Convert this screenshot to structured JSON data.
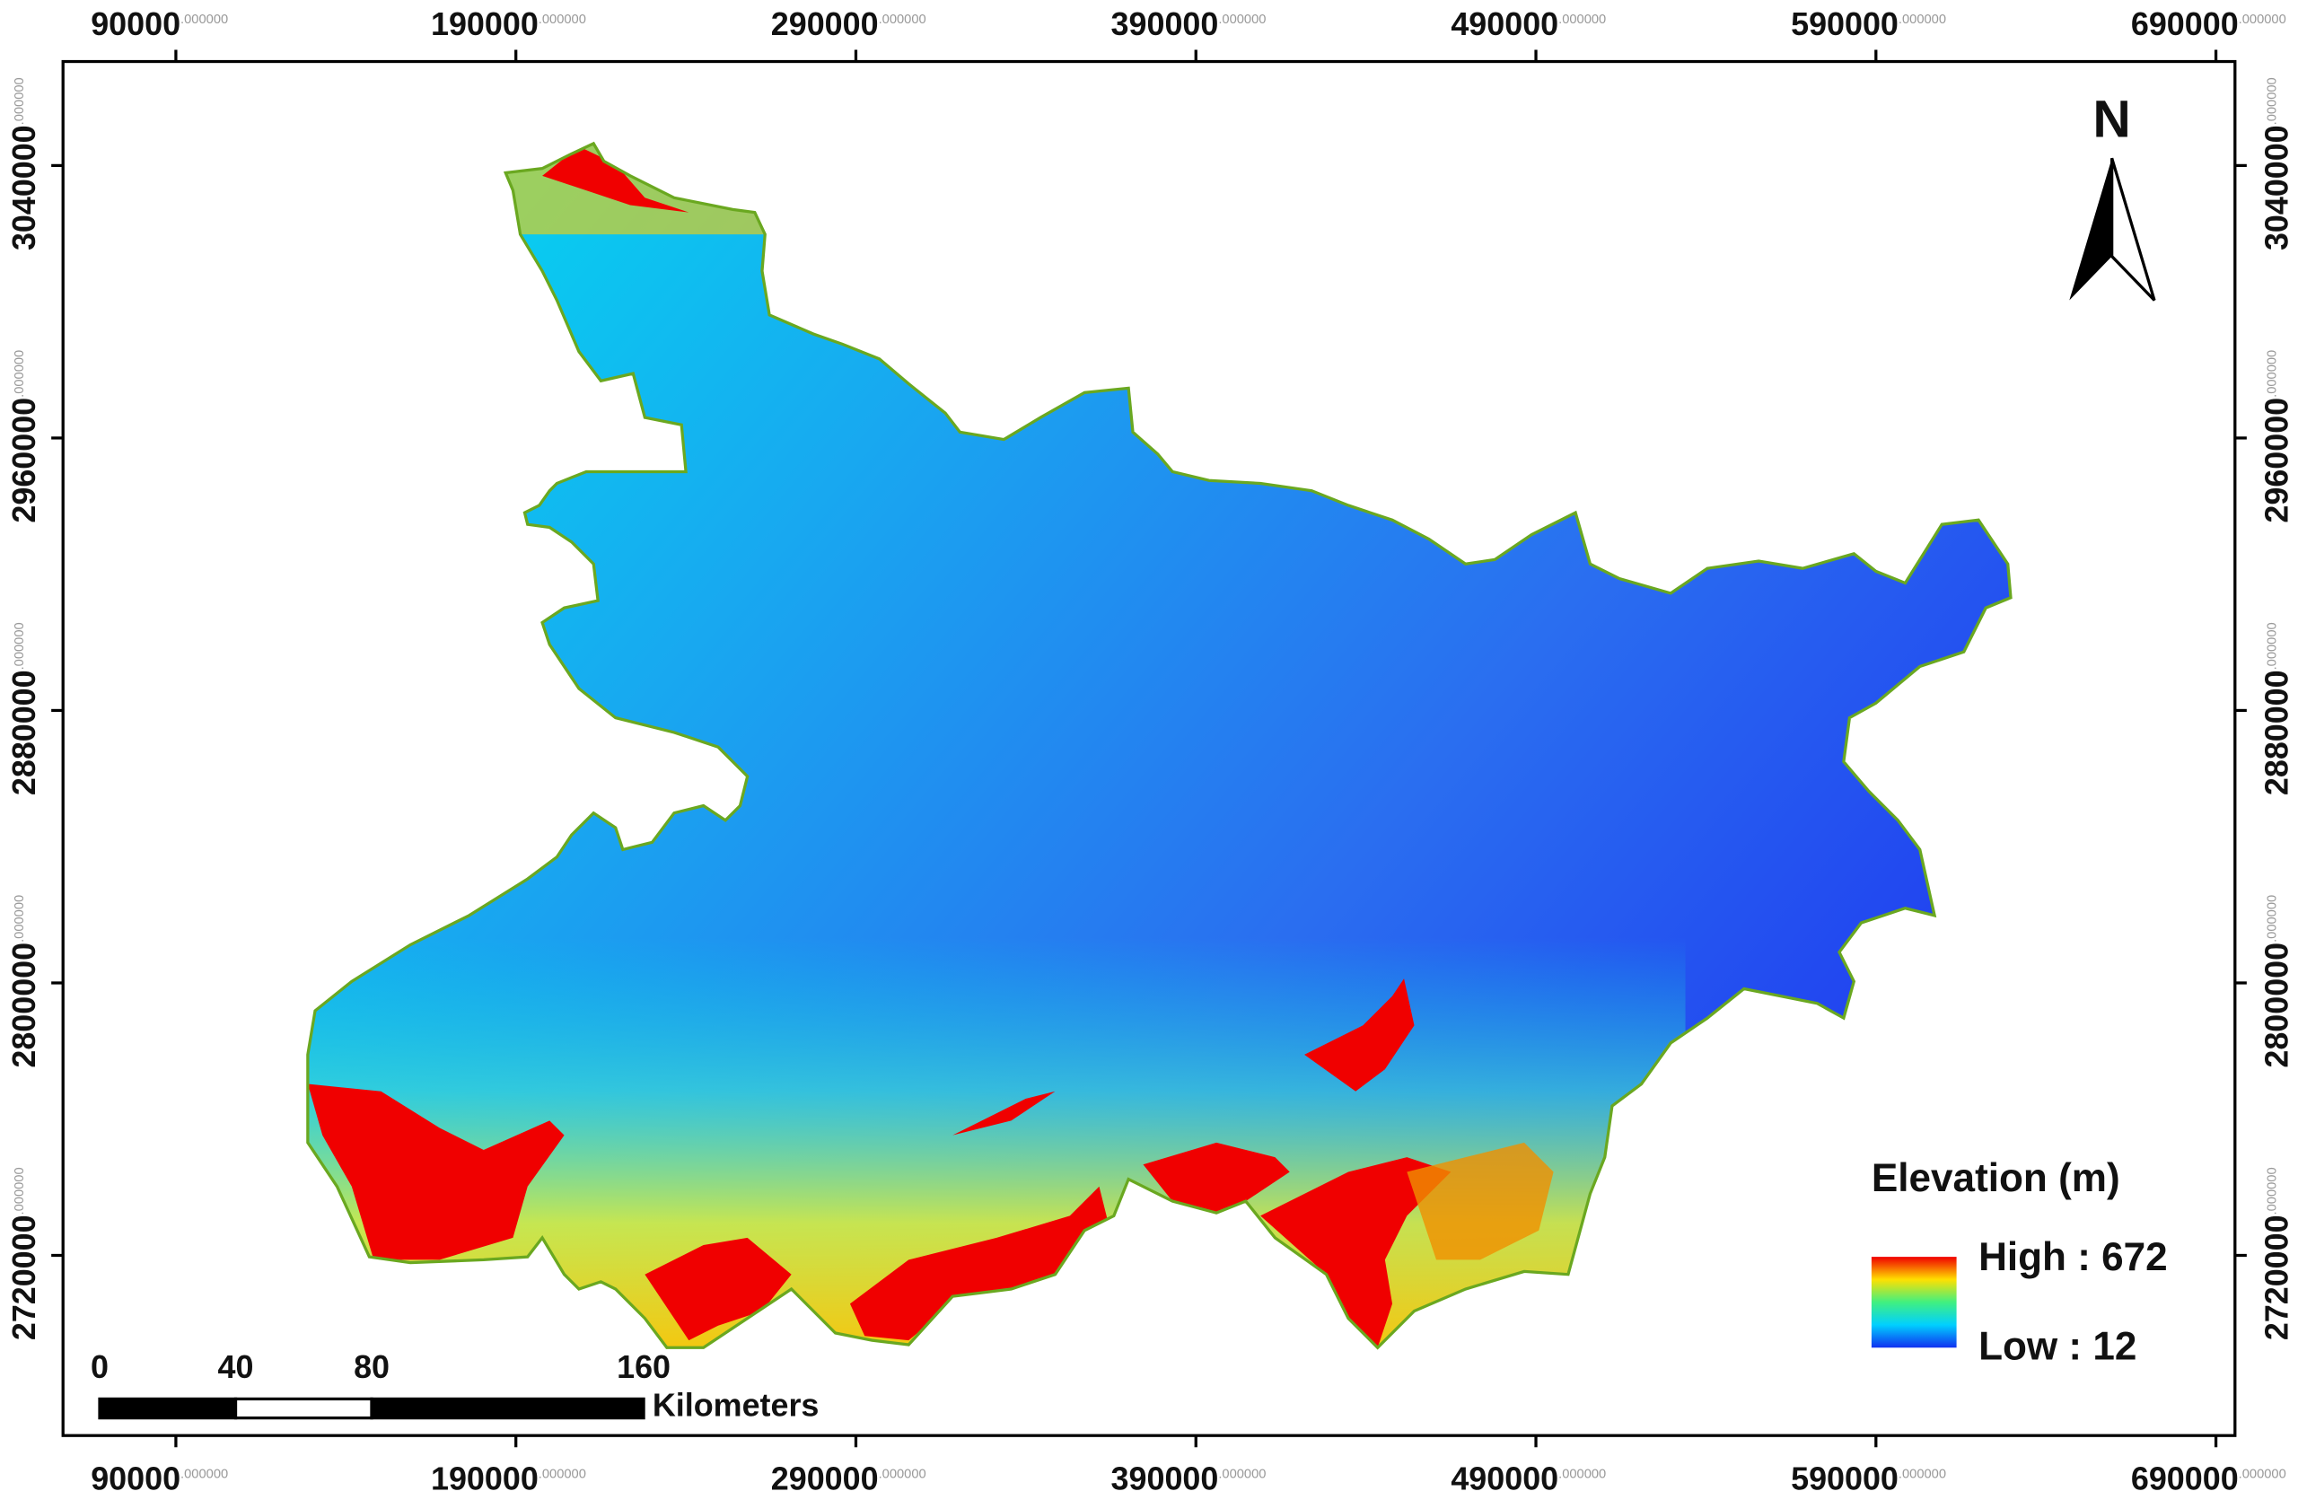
{
  "map": {
    "xlim": [
      56810,
      695600
    ],
    "ylim": [
      2667100,
      3070540
    ],
    "xticks": [
      90000,
      190000,
      290000,
      390000,
      490000,
      590000,
      690000
    ],
    "yticks": [
      2720000,
      2800000,
      2880000,
      2960000,
      3040000
    ],
    "tick_suffix": ".000000",
    "north": "N",
    "legend": {
      "title": "Elevation (m)",
      "high": "High : 672",
      "low": "Low : 12"
    },
    "scale_bar": {
      "ticks": [
        0,
        40,
        80,
        160
      ],
      "unit": "Kilometers"
    }
  }
}
